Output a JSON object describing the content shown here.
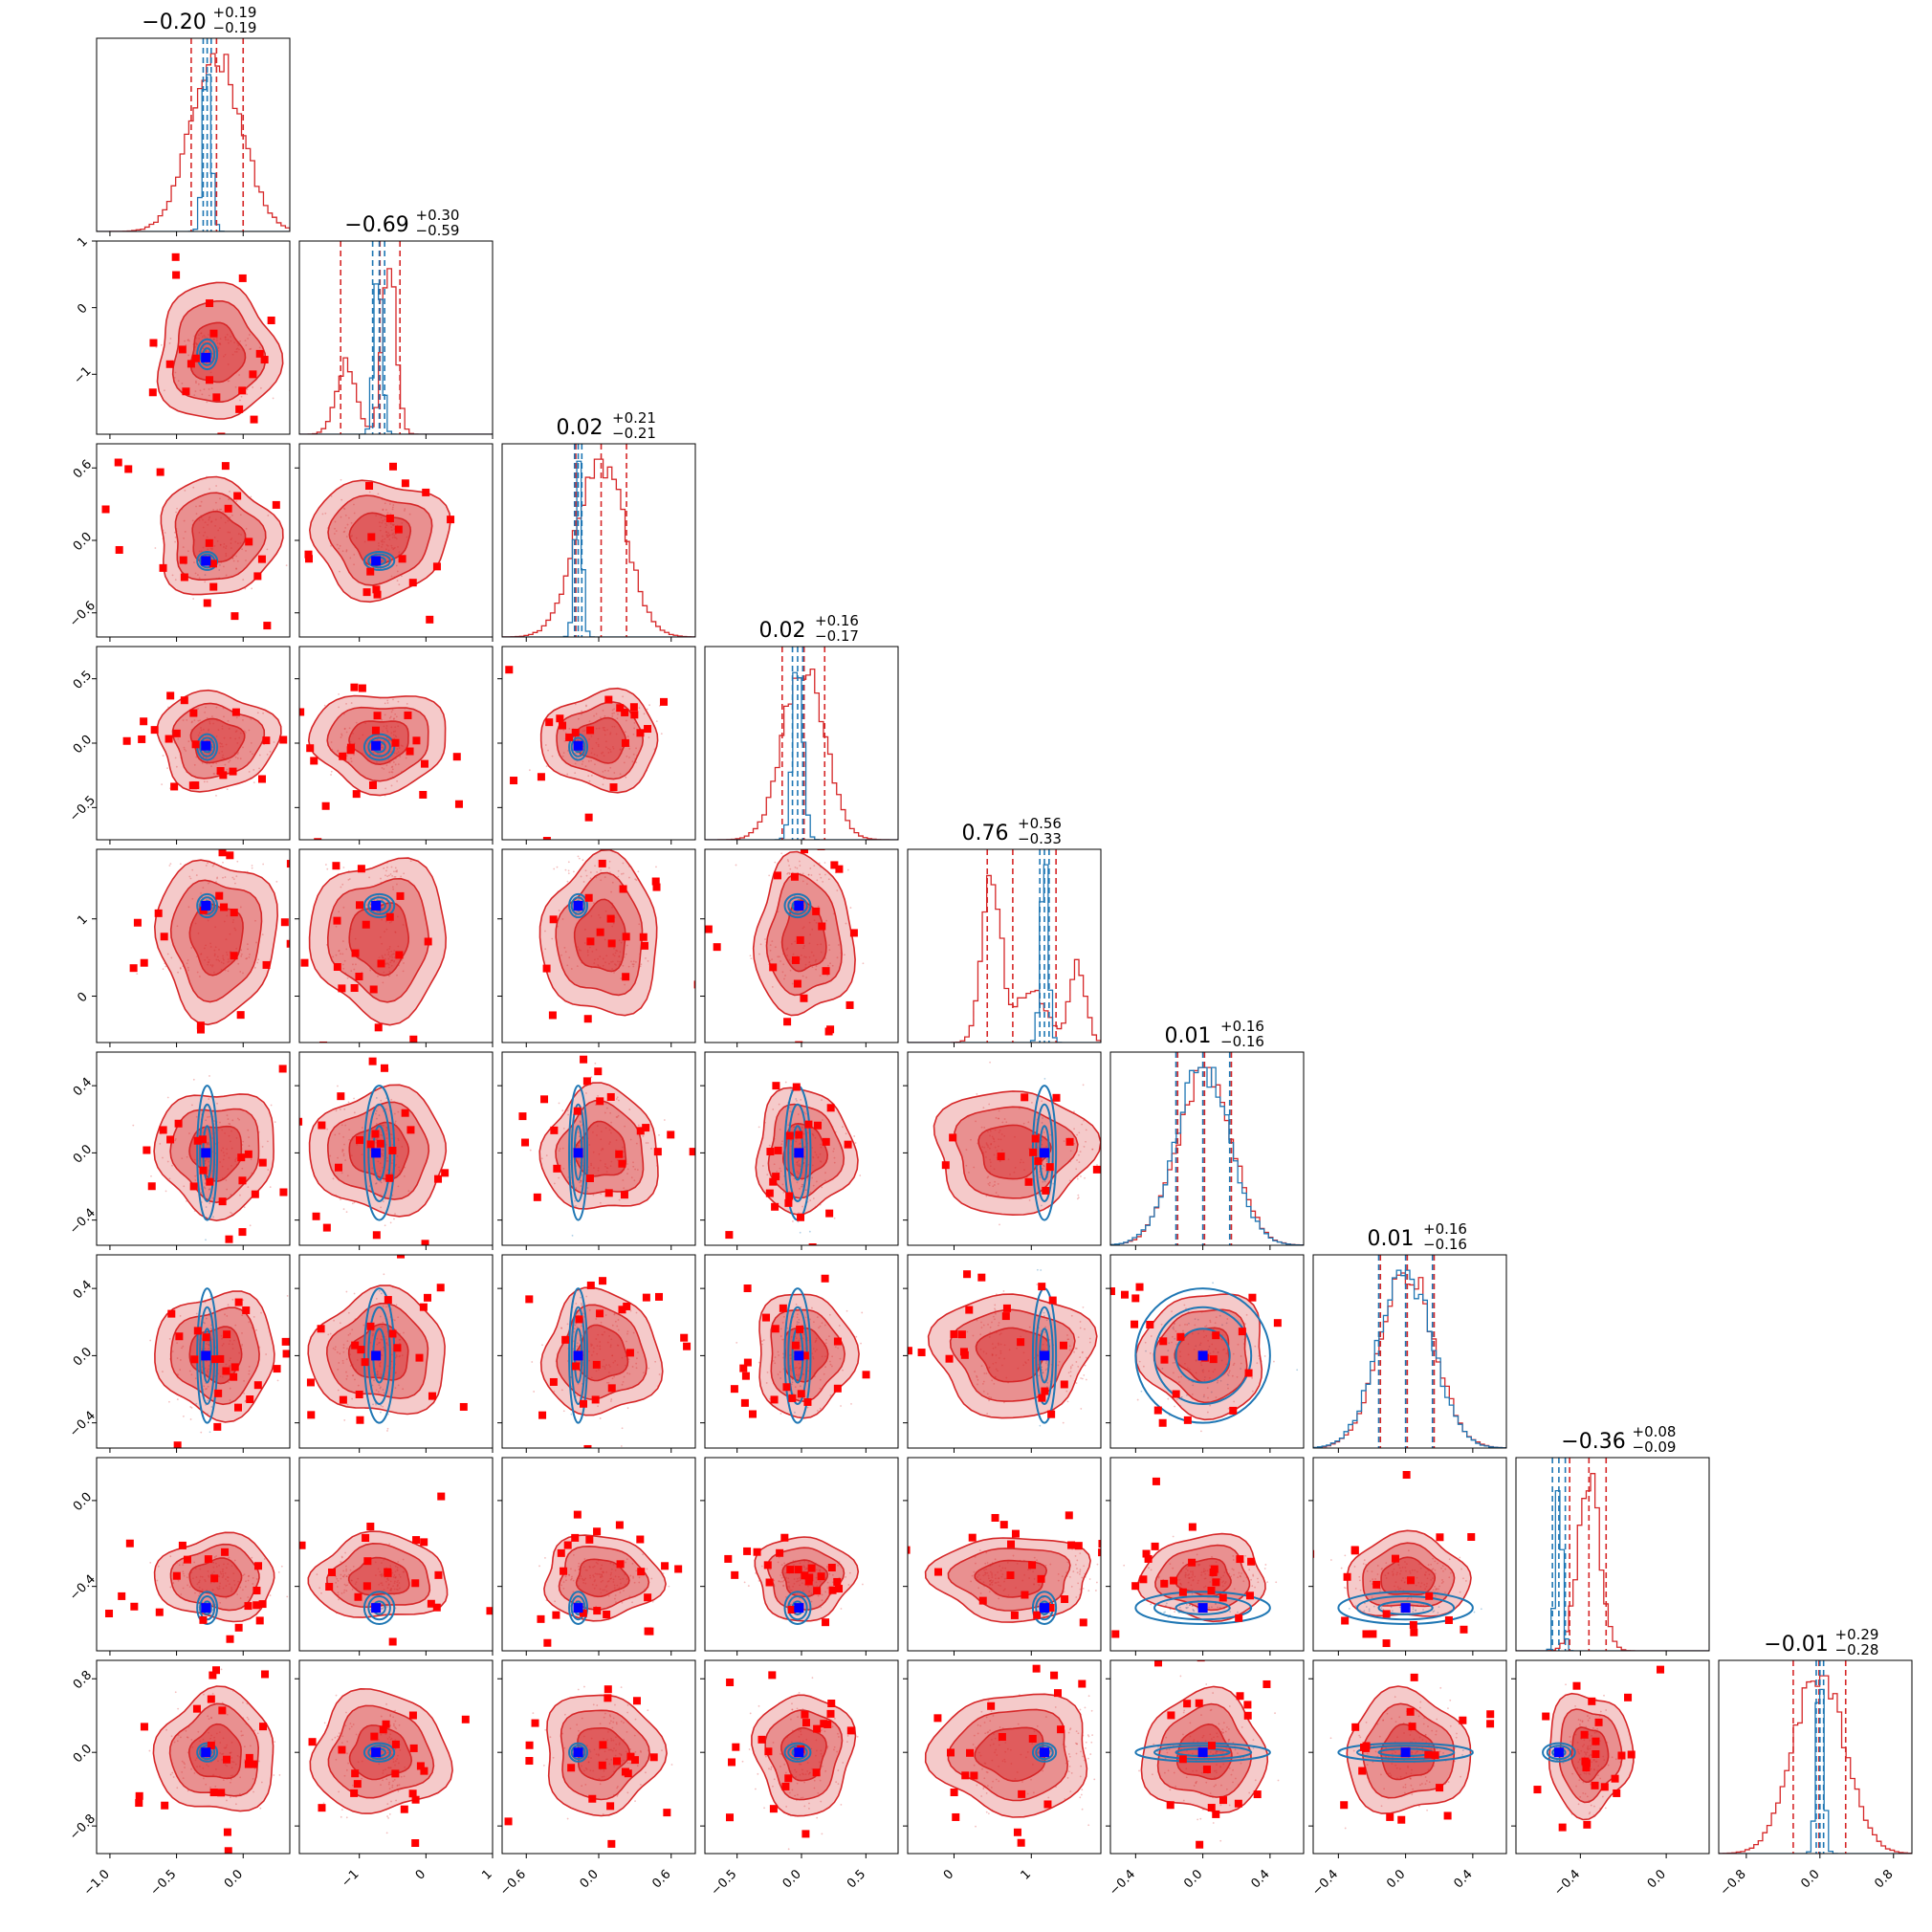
{
  "chart_data": {
    "type": "corner",
    "n_params": 9,
    "colors": {
      "series_a": "#d62728",
      "series_b": "#1f77b4",
      "truth_marker": "#0000ff",
      "outlier_marker": "#ff0000"
    },
    "grid": false,
    "titles": [
      {
        "median": "−0.20",
        "plus": "+0.19",
        "minus": "−0.19"
      },
      {
        "median": "−0.69",
        "plus": "+0.30",
        "minus": "−0.59"
      },
      {
        "median": "0.02",
        "plus": "+0.21",
        "minus": "−0.21"
      },
      {
        "median": "0.02",
        "plus": "+0.16",
        "minus": "−0.17"
      },
      {
        "median": "0.76",
        "plus": "+0.56",
        "minus": "−0.33"
      },
      {
        "median": "0.01",
        "plus": "+0.16",
        "minus": "−0.16"
      },
      {
        "median": "0.01",
        "plus": "+0.16",
        "minus": "−0.16"
      },
      {
        "median": "−0.36",
        "plus": "+0.08",
        "minus": "−0.09"
      },
      {
        "median": "−0.01",
        "plus": "+0.29",
        "minus": "−0.28"
      }
    ],
    "params": [
      {
        "range": [
          -1.1,
          0.35
        ],
        "ticks": [
          -1.0,
          -0.5,
          0.0
        ],
        "tick_labels": [
          "−1.0",
          "−0.5",
          "0.0"
        ],
        "a": {
          "median": -0.2,
          "lo": -0.39,
          "hi": 0.0,
          "shape": [
            [
              -0.2,
              0.19,
              1
            ]
          ]
        },
        "b": {
          "median": -0.27,
          "lo": -0.3,
          "hi": -0.24,
          "shape": [
            [
              -0.27,
              0.03,
              1
            ]
          ]
        },
        "truth": -0.28
      },
      {
        "range": [
          -1.9,
          1.0
        ],
        "ticks": [
          -1,
          0,
          1
        ],
        "tick_labels": [
          "−1",
          "0",
          "1"
        ],
        "a": {
          "median": -0.69,
          "lo": -1.28,
          "hi": -0.39,
          "shape": [
            [
              -1.2,
              0.15,
              0.4
            ],
            [
              -0.55,
              0.1,
              1
            ]
          ]
        },
        "b": {
          "median": -0.7,
          "lo": -0.8,
          "hi": -0.62,
          "shape": [
            [
              -0.72,
              0.06,
              1
            ]
          ]
        },
        "truth": -0.75
      },
      {
        "range": [
          -0.8,
          0.8
        ],
        "ticks": [
          -0.6,
          0.0,
          0.6
        ],
        "tick_labels": [
          "−0.6",
          "0.0",
          "0.6"
        ],
        "a": {
          "median": 0.02,
          "lo": -0.19,
          "hi": 0.23,
          "shape": [
            [
              0.02,
              0.2,
              1
            ]
          ]
        },
        "b": {
          "median": -0.17,
          "lo": -0.2,
          "hi": -0.14,
          "shape": [
            [
              -0.17,
              0.03,
              1
            ]
          ]
        },
        "truth": -0.17
      },
      {
        "range": [
          -0.75,
          0.75
        ],
        "ticks": [
          -0.5,
          0.0,
          0.5
        ],
        "tick_labels": [
          "−0.5",
          "0.0",
          "0.5"
        ],
        "a": {
          "median": 0.02,
          "lo": -0.15,
          "hi": 0.18,
          "shape": [
            [
              0.02,
              0.16,
              1
            ]
          ]
        },
        "b": {
          "median": -0.03,
          "lo": -0.07,
          "hi": 0.01,
          "shape": [
            [
              -0.03,
              0.04,
              1
            ]
          ]
        },
        "truth": -0.02
      },
      {
        "range": [
          -0.6,
          1.9
        ],
        "ticks": [
          0,
          1
        ],
        "tick_labels": [
          "0",
          "1"
        ],
        "a": {
          "median": 0.76,
          "lo": 0.43,
          "hi": 1.32,
          "shape": [
            [
              0.48,
              0.12,
              1
            ],
            [
              1.0,
              0.2,
              0.3
            ],
            [
              1.6,
              0.1,
              0.45
            ]
          ]
        },
        "b": {
          "median": 1.17,
          "lo": 1.11,
          "hi": 1.23,
          "shape": [
            [
              1.17,
              0.05,
              1
            ]
          ]
        },
        "truth": 1.17
      },
      {
        "range": [
          -0.55,
          0.6
        ],
        "ticks": [
          -0.4,
          0.0,
          0.4
        ],
        "tick_labels": [
          "−0.4",
          "0.0",
          "0.4"
        ],
        "a": {
          "median": 0.01,
          "lo": -0.15,
          "hi": 0.17,
          "shape": [
            [
              0.01,
              0.16,
              1
            ]
          ]
        },
        "b": {
          "median": 0.0,
          "lo": -0.16,
          "hi": 0.16,
          "shape": [
            [
              0.0,
              0.16,
              1
            ]
          ]
        },
        "truth": 0.0
      },
      {
        "range": [
          -0.55,
          0.6
        ],
        "ticks": [
          -0.4,
          0.0,
          0.4
        ],
        "tick_labels": [
          "−0.4",
          "0.0",
          "0.4"
        ],
        "a": {
          "median": 0.01,
          "lo": -0.15,
          "hi": 0.17,
          "shape": [
            [
              0.01,
              0.16,
              1
            ]
          ]
        },
        "b": {
          "median": 0.0,
          "lo": -0.16,
          "hi": 0.16,
          "shape": [
            [
              0.0,
              0.16,
              1
            ]
          ]
        },
        "truth": 0.0
      },
      {
        "range": [
          -0.7,
          0.2
        ],
        "ticks": [
          -0.4,
          0.0
        ],
        "tick_labels": [
          "−0.4",
          "0.0"
        ],
        "y_ticks": [
          -0.4,
          0.0
        ],
        "y_tick_labels": [
          "−0.4",
          "0.0"
        ],
        "a": {
          "median": -0.36,
          "lo": -0.45,
          "hi": -0.28,
          "shape": [
            [
              -0.36,
              0.05,
              1
            ]
          ]
        },
        "b": {
          "median": -0.5,
          "lo": -0.53,
          "hi": -0.47,
          "shape": [
            [
              -0.5,
              0.015,
              1
            ]
          ]
        },
        "truth": -0.5
      },
      {
        "range": [
          -1.1,
          1.0
        ],
        "ticks": [
          -0.8,
          0.0,
          0.8
        ],
        "tick_labels": [
          "−0.8",
          "0.0",
          "0.8"
        ],
        "a": {
          "median": -0.01,
          "lo": -0.29,
          "hi": 0.28,
          "shape": [
            [
              -0.01,
              0.28,
              1
            ]
          ]
        },
        "b": {
          "median": 0.0,
          "lo": -0.04,
          "hi": 0.04,
          "shape": [
            [
              0.0,
              0.04,
              1
            ]
          ]
        },
        "truth": 0.0
      }
    ]
  }
}
